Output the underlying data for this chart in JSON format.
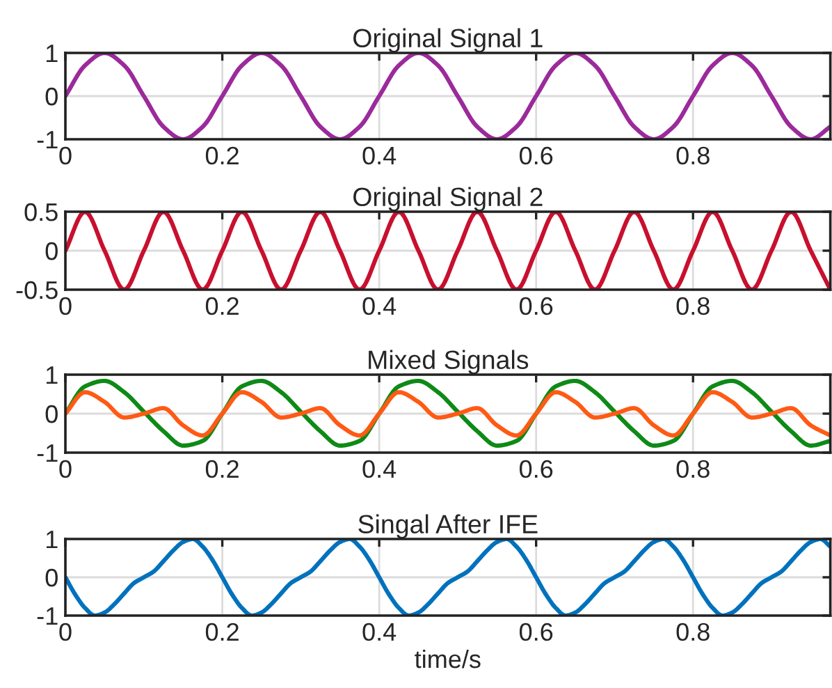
{
  "chart_data": [
    {
      "type": "line",
      "title": "Original Signal 1",
      "x": [
        0,
        0.025,
        0.05,
        0.075,
        0.1,
        0.125,
        0.15,
        0.175,
        0.2,
        0.225,
        0.25,
        0.275,
        0.3,
        0.325,
        0.35,
        0.375,
        0.4,
        0.425,
        0.45,
        0.475,
        0.5,
        0.525,
        0.55,
        0.575,
        0.6,
        0.625,
        0.65,
        0.675,
        0.7,
        0.725,
        0.75,
        0.775,
        0.8,
        0.825,
        0.85,
        0.875,
        0.9,
        0.925,
        0.95,
        0.975
      ],
      "series": [
        {
          "color": "#9b2a9b",
          "values": [
            0,
            0.71,
            1,
            0.71,
            0,
            -0.71,
            -1,
            -0.71,
            0,
            0.71,
            1,
            0.71,
            0,
            -0.71,
            -1,
            -0.71,
            0,
            0.71,
            1,
            0.71,
            0,
            -0.71,
            -1,
            -0.71,
            0,
            0.71,
            1,
            0.71,
            0,
            -0.71,
            -1,
            -0.71,
            0,
            0.71,
            1,
            0.71,
            0,
            -0.71,
            -1,
            -0.71
          ]
        }
      ],
      "xlim": [
        0,
        0.975
      ],
      "xticks": [
        0,
        0.2,
        0.4,
        0.6,
        0.8
      ],
      "ylim": [
        -1,
        1
      ],
      "yticks": [
        -1,
        0,
        1
      ],
      "grid": true
    },
    {
      "type": "line",
      "title": "Original Signal 2",
      "x": [
        0,
        0.025,
        0.05,
        0.075,
        0.1,
        0.125,
        0.15,
        0.175,
        0.2,
        0.225,
        0.25,
        0.275,
        0.3,
        0.325,
        0.35,
        0.375,
        0.4,
        0.425,
        0.45,
        0.475,
        0.5,
        0.525,
        0.55,
        0.575,
        0.6,
        0.625,
        0.65,
        0.675,
        0.7,
        0.725,
        0.75,
        0.775,
        0.8,
        0.825,
        0.85,
        0.875,
        0.9,
        0.925,
        0.95,
        0.975
      ],
      "series": [
        {
          "color": "#c8102e",
          "values": [
            0,
            0.5,
            0,
            -0.5,
            0,
            0.5,
            0,
            -0.5,
            0,
            0.5,
            0,
            -0.5,
            0,
            0.5,
            0,
            -0.5,
            0,
            0.5,
            0,
            -0.5,
            0,
            0.5,
            0,
            -0.5,
            0,
            0.5,
            0,
            -0.5,
            0,
            0.5,
            0,
            -0.5,
            0,
            0.5,
            0,
            -0.5,
            0,
            0.5,
            0,
            -0.5
          ]
        }
      ],
      "xlim": [
        0,
        0.975
      ],
      "xticks": [
        0,
        0.2,
        0.4,
        0.6,
        0.8
      ],
      "ylim": [
        -0.5,
        0.5
      ],
      "yticks": [
        -0.5,
        0,
        0.5
      ],
      "grid": true
    },
    {
      "type": "line",
      "title": "Mixed Signals",
      "x": [
        0,
        0.025,
        0.05,
        0.075,
        0.1,
        0.125,
        0.15,
        0.175,
        0.2,
        0.225,
        0.25,
        0.275,
        0.3,
        0.325,
        0.35,
        0.375,
        0.4,
        0.425,
        0.45,
        0.475,
        0.5,
        0.525,
        0.55,
        0.575,
        0.6,
        0.625,
        0.65,
        0.675,
        0.7,
        0.725,
        0.75,
        0.775,
        0.8,
        0.825,
        0.85,
        0.875,
        0.9,
        0.925,
        0.95,
        0.975
      ],
      "series": [
        {
          "color": "#0e8a16",
          "values": [
            0,
            0.7,
            0.84,
            0.55,
            0.05,
            -0.45,
            -0.82,
            -0.7,
            0,
            0.7,
            0.84,
            0.55,
            0.05,
            -0.45,
            -0.82,
            -0.7,
            0,
            0.7,
            0.84,
            0.55,
            0.05,
            -0.45,
            -0.82,
            -0.7,
            0,
            0.7,
            0.84,
            0.55,
            0.05,
            -0.45,
            -0.82,
            -0.7,
            0,
            0.7,
            0.84,
            0.55,
            0.05,
            -0.45,
            -0.82,
            -0.7
          ]
        },
        {
          "color": "#ff5a14",
          "values": [
            0,
            0.55,
            0.3,
            -0.1,
            0,
            0.14,
            -0.3,
            -0.56,
            0,
            0.55,
            0.3,
            -0.1,
            0,
            0.14,
            -0.3,
            -0.56,
            0,
            0.55,
            0.3,
            -0.1,
            0,
            0.14,
            -0.3,
            -0.56,
            0,
            0.55,
            0.3,
            -0.1,
            0,
            0.14,
            -0.3,
            -0.56,
            0,
            0.55,
            0.3,
            -0.1,
            0,
            0.14,
            -0.3,
            -0.56
          ]
        }
      ],
      "xlim": [
        0,
        0.975
      ],
      "xticks": [
        0,
        0.2,
        0.4,
        0.6,
        0.8
      ],
      "ylim": [
        -1,
        1
      ],
      "yticks": [
        -1,
        0,
        1
      ],
      "grid": true
    },
    {
      "type": "line",
      "title": "Singal After IFE",
      "xlabel": "time/s",
      "x": [
        0,
        0.0125,
        0.025,
        0.0375,
        0.05,
        0.0625,
        0.075,
        0.0875,
        0.1,
        0.1125,
        0.125,
        0.1375,
        0.15,
        0.1625,
        0.175,
        0.1875,
        0.2,
        0.2125,
        0.225,
        0.2375,
        0.25,
        0.2625,
        0.275,
        0.2875,
        0.3,
        0.3125,
        0.325,
        0.3375,
        0.35,
        0.3625,
        0.375,
        0.3875,
        0.4,
        0.4125,
        0.425,
        0.4375,
        0.45,
        0.4625,
        0.475,
        0.4875,
        0.5,
        0.5125,
        0.525,
        0.5375,
        0.55,
        0.5625,
        0.575,
        0.5875,
        0.6,
        0.6125,
        0.625,
        0.6375,
        0.65,
        0.6625,
        0.675,
        0.6875,
        0.7,
        0.7125,
        0.725,
        0.7375,
        0.75,
        0.7625,
        0.775,
        0.7875,
        0.8,
        0.8125,
        0.825,
        0.8375,
        0.85,
        0.8625,
        0.875,
        0.8875,
        0.9,
        0.9125,
        0.925,
        0.9375,
        0.95,
        0.9625,
        0.975
      ],
      "series": [
        {
          "color": "#0072bd",
          "values": [
            0,
            -0.45,
            -0.8,
            -1,
            -0.92,
            -0.7,
            -0.42,
            -0.15,
            0,
            0.15,
            0.42,
            0.7,
            0.92,
            1,
            0.8,
            0.45,
            0,
            -0.45,
            -0.8,
            -1,
            -0.92,
            -0.7,
            -0.42,
            -0.15,
            0,
            0.15,
            0.42,
            0.7,
            0.92,
            1,
            0.8,
            0.45,
            0,
            -0.45,
            -0.8,
            -1,
            -0.92,
            -0.7,
            -0.42,
            -0.15,
            0,
            0.15,
            0.42,
            0.7,
            0.92,
            1,
            0.8,
            0.45,
            0,
            -0.45,
            -0.8,
            -1,
            -0.92,
            -0.7,
            -0.42,
            -0.15,
            0,
            0.15,
            0.42,
            0.7,
            0.92,
            1,
            0.8,
            0.45,
            0,
            -0.45,
            -0.8,
            -1,
            -0.92,
            -0.7,
            -0.42,
            -0.15,
            0,
            0.15,
            0.42,
            0.7,
            0.92,
            1,
            0.8
          ]
        }
      ],
      "xlim": [
        0,
        0.975
      ],
      "xticks": [
        0,
        0.2,
        0.4,
        0.6,
        0.8
      ],
      "ylim": [
        -1,
        1
      ],
      "yticks": [
        -1,
        0,
        1
      ],
      "grid": true
    }
  ]
}
